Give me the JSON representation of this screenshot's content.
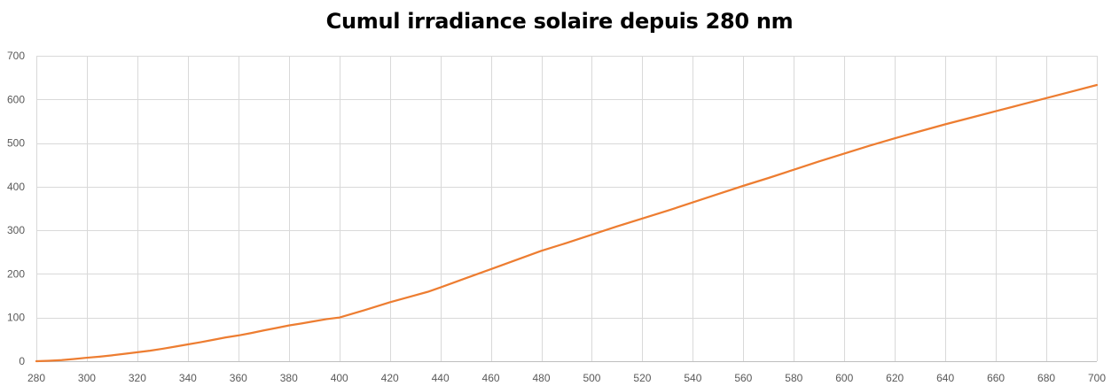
{
  "chart_data": {
    "type": "line",
    "title": "Cumul irradiance solaire depuis 280 nm",
    "xlabel": "",
    "ylabel": "",
    "xlim": [
      280,
      700
    ],
    "ylim": [
      0,
      700
    ],
    "x_ticks": [
      280,
      300,
      320,
      340,
      360,
      380,
      400,
      420,
      440,
      460,
      480,
      500,
      520,
      540,
      560,
      580,
      600,
      620,
      640,
      660,
      680,
      700
    ],
    "y_ticks": [
      0,
      100,
      200,
      300,
      400,
      500,
      600,
      700
    ],
    "grid": true,
    "legend": "none",
    "series": [
      {
        "color": "#ed7d31",
        "x": [
          280,
          285,
          290,
          295,
          300,
          305,
          310,
          315,
          320,
          325,
          330,
          335,
          340,
          345,
          350,
          355,
          360,
          365,
          370,
          375,
          380,
          385,
          390,
          395,
          400,
          410,
          420,
          430,
          435,
          440,
          450,
          460,
          470,
          480,
          490,
          500,
          510,
          520,
          530,
          540,
          550,
          560,
          570,
          580,
          590,
          600,
          610,
          620,
          630,
          640,
          650,
          660,
          670,
          680,
          690,
          700
        ],
        "y": [
          0,
          1,
          2.5,
          5,
          8,
          10.5,
          13.5,
          17,
          20.5,
          24,
          28.5,
          33.5,
          38.5,
          43.5,
          49,
          54.5,
          59,
          64.5,
          70.5,
          76,
          82,
          86.5,
          91.5,
          96.5,
          100,
          117,
          135,
          151,
          159,
          169,
          190,
          211,
          232,
          253,
          271,
          290,
          309,
          327,
          345,
          364,
          383,
          402,
          420,
          439,
          458,
          476,
          494,
          511,
          527,
          543,
          558,
          573,
          588,
          603,
          618,
          633
        ]
      }
    ]
  }
}
